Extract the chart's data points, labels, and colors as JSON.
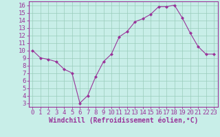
{
  "x": [
    0,
    1,
    2,
    3,
    4,
    5,
    6,
    7,
    8,
    9,
    10,
    11,
    12,
    13,
    14,
    15,
    16,
    17,
    18,
    19,
    20,
    21,
    22,
    23
  ],
  "y": [
    10.0,
    9.0,
    8.8,
    8.5,
    7.5,
    7.0,
    3.0,
    4.0,
    6.5,
    8.5,
    9.5,
    11.8,
    12.5,
    13.8,
    14.2,
    14.8,
    15.8,
    15.8,
    16.0,
    14.3,
    12.3,
    10.5,
    9.5,
    9.5
  ],
  "line_color": "#993399",
  "marker": "D",
  "marker_size": 2,
  "bg_color": "#c8eee8",
  "grid_color": "#99ccbb",
  "axis_color": "#993399",
  "xlabel": "Windchill (Refroidissement éolien,°C)",
  "xlabel_fontsize": 7,
  "tick_fontsize": 6.5,
  "ylim": [
    2.5,
    16.5
  ],
  "yticks": [
    3,
    4,
    5,
    6,
    7,
    8,
    9,
    10,
    11,
    12,
    13,
    14,
    15,
    16
  ],
  "xlim": [
    -0.5,
    23.5
  ],
  "xticks": [
    0,
    1,
    2,
    3,
    4,
    5,
    6,
    7,
    8,
    9,
    10,
    11,
    12,
    13,
    14,
    15,
    16,
    17,
    18,
    19,
    20,
    21,
    22,
    23
  ]
}
